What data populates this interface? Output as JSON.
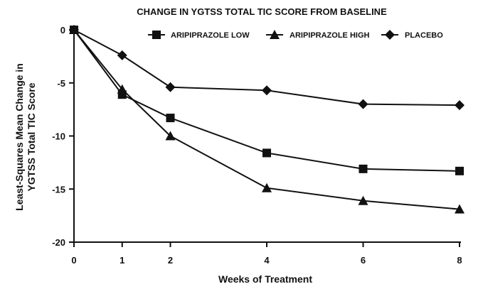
{
  "chart_data": {
    "type": "line",
    "title": "CHANGE IN YGTSS TOTAL TIC SCORE FROM BASELINE",
    "xlabel": "Weeks of Treatment",
    "ylabel_line1": "Least-Squares Mean Change in",
    "ylabel_line2": "YGTSS Total TIC Score",
    "x": [
      0,
      1,
      2,
      4,
      6,
      8
    ],
    "x_ticks": [
      0,
      1,
      2,
      4,
      6,
      8
    ],
    "y_ticks": [
      0,
      -5,
      -10,
      -15,
      -20
    ],
    "ylim": [
      -20,
      0
    ],
    "xlim": [
      0,
      8
    ],
    "grid": false,
    "legend_position": "top-right",
    "series": [
      {
        "name": "ARIPIPRAZOLE LOW",
        "marker": "square",
        "values": [
          0,
          -6.1,
          -8.3,
          -11.6,
          -13.1,
          -13.3
        ]
      },
      {
        "name": "ARIPIPRAZOLE HIGH",
        "marker": "triangle",
        "values": [
          0,
          -5.6,
          -10.0,
          -14.9,
          -16.1,
          -16.9
        ]
      },
      {
        "name": "PLACEBO",
        "marker": "diamond",
        "values": [
          0,
          -2.4,
          -5.4,
          -5.7,
          -7.0,
          -7.1
        ]
      }
    ],
    "colors": {
      "line": "#111111",
      "marker": "#111111",
      "axis": "#111111"
    }
  }
}
